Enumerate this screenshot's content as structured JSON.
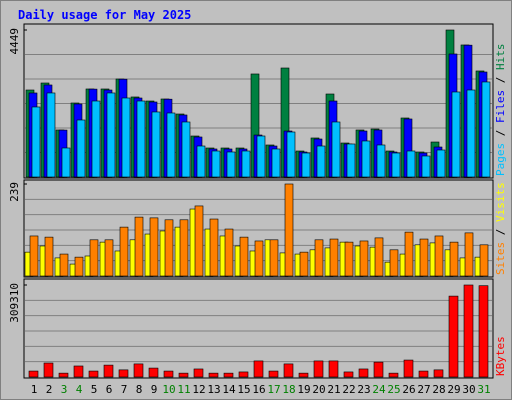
{
  "chart_data": [
    {
      "type": "bar",
      "title": "Daily usage for May 2025",
      "legend_separator": " / ",
      "ylim": [
        0,
        4449
      ],
      "yticks": [
        4449
      ],
      "series": [
        {
          "name": "Hits",
          "color": "#008040",
          "values": [
            2633,
            2845,
            1423,
            2240,
            2664,
            2664,
            2966,
            2422,
            2300,
            2361,
            1907,
            1241,
            878,
            878,
            878,
            3118,
            969,
            3299,
            787,
            1181,
            2512,
            1029,
            1423,
            1453,
            787,
            1786,
            757,
            1059,
            4449,
            3996,
            3209
          ]
        },
        {
          "name": "Files",
          "color": "#0000ff",
          "values": [
            2543,
            2785,
            1420,
            2210,
            2660,
            2633,
            2960,
            2391,
            2270,
            2355,
            1877,
            1211,
            848,
            848,
            848,
            1271,
            938,
            1392,
            757,
            1150,
            2300,
            999,
            1392,
            1423,
            757,
            1756,
            726,
            908,
            3723,
            3990,
            3178
          ]
        },
        {
          "name": "Pages",
          "color": "#00c0ff",
          "values": [
            2119,
            2543,
            878,
            1725,
            2300,
            2543,
            2391,
            2300,
            1968,
            1937,
            1665,
            938,
            787,
            757,
            787,
            1241,
            848,
            1362,
            726,
            938,
            1665,
            999,
            1090,
            969,
            726,
            787,
            636,
            817,
            2573,
            2633,
            2876
          ]
        }
      ]
    },
    {
      "type": "bar",
      "legend_separator": " / ",
      "ylim": [
        0,
        239
      ],
      "yticks": [
        239
      ],
      "series": [
        {
          "name": "Visits",
          "color": "#ffff00",
          "values": [
            62,
            78,
            47,
            31,
            52,
            88,
            65,
            94,
            109,
            117,
            127,
            174,
            122,
            104,
            78,
            65,
            94,
            60,
            57,
            68,
            73,
            88,
            78,
            75,
            36,
            57,
            81,
            86,
            68,
            47,
            49
          ]
        },
        {
          "name": "Sites",
          "color": "#ff8000",
          "values": [
            104,
            101,
            57,
            49,
            94,
            94,
            127,
            153,
            151,
            146,
            146,
            182,
            148,
            122,
            101,
            91,
            94,
            239,
            62,
            94,
            96,
            88,
            91,
            99,
            68,
            114,
            96,
            104,
            88,
            112,
            81
          ]
        }
      ]
    },
    {
      "type": "bar",
      "ylim": [
        0,
        309310
      ],
      "yticks": [
        309310
      ],
      "categories": [
        "1",
        "2",
        "3",
        "4",
        "5",
        "6",
        "7",
        "8",
        "9",
        "10",
        "11",
        "12",
        "13",
        "14",
        "15",
        "16",
        "17",
        "18",
        "19",
        "20",
        "21",
        "22",
        "23",
        "24",
        "25",
        "26",
        "27",
        "28",
        "29",
        "30",
        "31"
      ],
      "category_colors": [
        "#000000",
        "#000000",
        "#008000",
        "#008000",
        "#000000",
        "#000000",
        "#000000",
        "#000000",
        "#000000",
        "#008000",
        "#008000",
        "#000000",
        "#000000",
        "#000000",
        "#000000",
        "#000000",
        "#008000",
        "#008000",
        "#000000",
        "#000000",
        "#000000",
        "#000000",
        "#000000",
        "#008000",
        "#008000",
        "#000000",
        "#000000",
        "#000000",
        "#000000",
        "#000000",
        "#008000"
      ],
      "series": [
        {
          "name": "KBytes",
          "color": "#ff0000",
          "values": [
            20000,
            47000,
            13000,
            37000,
            20000,
            40000,
            24000,
            44000,
            30000,
            20000,
            13000,
            27000,
            13000,
            13000,
            17000,
            54000,
            20000,
            44000,
            13000,
            54000,
            54000,
            17000,
            27000,
            50000,
            13000,
            57000,
            20000,
            24000,
            272000,
            309310,
            307000
          ]
        }
      ]
    }
  ]
}
